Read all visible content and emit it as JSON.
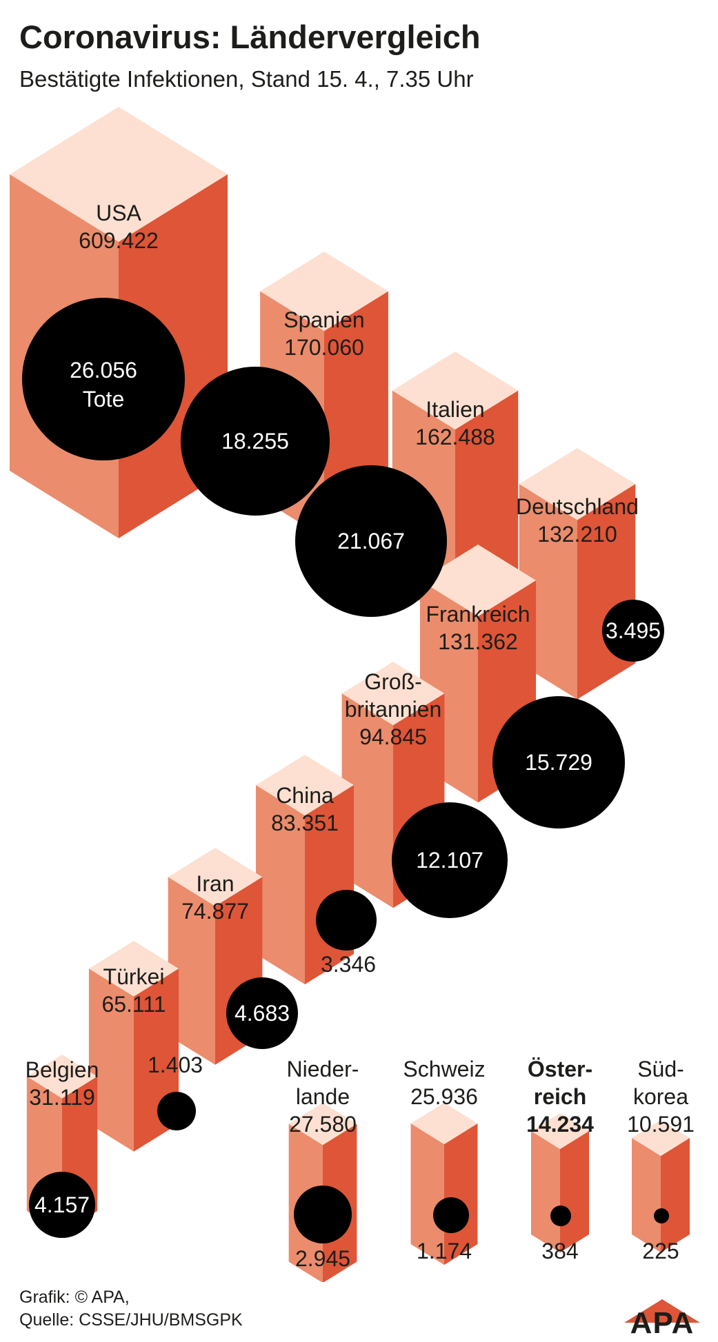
{
  "title": "Coronavirus: Ländervergleich",
  "subtitle": "Bestätigte Infektionen, Stand 15. 4., 7.35 Uhr",
  "source_line1": "Grafik: © APA,",
  "source_line2": "Quelle: CSSE/JHU/BMSGPK",
  "logo_text": "APA",
  "colors": {
    "top": "#fde0d1",
    "left": "#eb8c6c",
    "right": "#de5537",
    "circle": "#000000"
  },
  "chart_data": {
    "type": "cube-bubble",
    "title": "Coronavirus: Ländervergleich",
    "subtitle": "Bestätigte Infektionen, Stand 15. 4., 7.35 Uhr",
    "tote_label": "Tote",
    "categories": [
      "USA",
      "Spanien",
      "Italien",
      "Deutschland",
      "Frankreich",
      "Großbritannien",
      "China",
      "Iran",
      "Türkei",
      "Belgien",
      "Niederlande",
      "Schweiz",
      "Österreich",
      "Südkorea"
    ],
    "series": [
      {
        "values": [
          609422,
          170060,
          162488,
          132210,
          131362,
          94845,
          83351,
          74877,
          65111,
          31119,
          27580,
          25936,
          14234,
          10591
        ]
      },
      {
        "name": "Tote",
        "values": [
          26056,
          18255,
          21067,
          3495,
          15729,
          12107,
          3346,
          4683,
          1403,
          4157,
          2945,
          1174,
          384,
          225
        ]
      }
    ],
    "points": [
      {
        "label_lines": [
          "USA"
        ],
        "confirmed": "609.422",
        "deaths": "26.056",
        "highlight": false
      },
      {
        "label_lines": [
          "Spanien"
        ],
        "confirmed": "170.060",
        "deaths": "18.255",
        "highlight": false
      },
      {
        "label_lines": [
          "Italien"
        ],
        "confirmed": "162.488",
        "deaths": "21.067",
        "highlight": false
      },
      {
        "label_lines": [
          "Deutschland"
        ],
        "confirmed": "132.210",
        "deaths": "3.495",
        "highlight": false
      },
      {
        "label_lines": [
          "Frankreich"
        ],
        "confirmed": "131.362",
        "deaths": "15.729",
        "highlight": false
      },
      {
        "label_lines": [
          "Groß-",
          "britannien"
        ],
        "confirmed": "94.845",
        "deaths": "12.107",
        "highlight": false
      },
      {
        "label_lines": [
          "China"
        ],
        "confirmed": "83.351",
        "deaths": "3.346",
        "highlight": false
      },
      {
        "label_lines": [
          "Iran"
        ],
        "confirmed": "74.877",
        "deaths": "4.683",
        "highlight": false
      },
      {
        "label_lines": [
          "Türkei"
        ],
        "confirmed": "65.111",
        "deaths": "1.403",
        "highlight": false
      },
      {
        "label_lines": [
          "Belgien"
        ],
        "confirmed": "31.119",
        "deaths": "4.157",
        "highlight": false
      },
      {
        "label_lines": [
          "Nieder-",
          "lande"
        ],
        "confirmed": "27.580",
        "deaths": "2.945",
        "highlight": false
      },
      {
        "label_lines": [
          "Schweiz"
        ],
        "confirmed": "25.936",
        "deaths": "1.174",
        "highlight": false
      },
      {
        "label_lines": [
          "Öster-",
          "reich"
        ],
        "confirmed": "14.234",
        "deaths": "384",
        "highlight": true
      },
      {
        "label_lines": [
          "Süd-",
          "korea"
        ],
        "confirmed": "10.591",
        "deaths": "225",
        "highlight": false
      }
    ]
  }
}
